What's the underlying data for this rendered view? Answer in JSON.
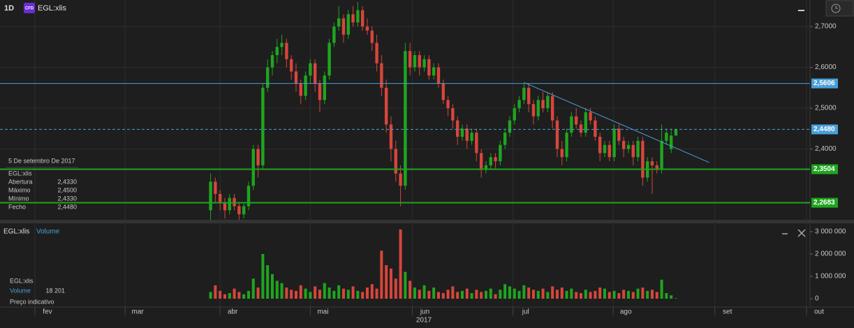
{
  "header": {
    "interval": "1D",
    "badge": "CFD",
    "symbol": "EGL:xlis"
  },
  "info": {
    "date": "5 De setembro De 2017",
    "symbol": "EGL:xlis",
    "rows": [
      [
        "Abertura",
        "2,4330"
      ],
      [
        "Máximo",
        "2,4500"
      ],
      [
        "Mínimo",
        "2,4330"
      ],
      [
        "Fecho",
        "2,4480"
      ]
    ]
  },
  "volume_header": {
    "symbol": "EGL:xlis",
    "label": "Volume"
  },
  "volume_info": {
    "symbol": "EGL:xlis",
    "label": "Volume",
    "value": "18 201",
    "note": "Preço indicativo"
  },
  "chart_data": [
    {
      "type": "candlestick",
      "name": "EGL:xlis",
      "up_color": "#1fa51f",
      "down_color": "#d7463c",
      "xlim": [
        -7.35,
        163.24
      ],
      "ylim": [
        2.2265,
        2.765
      ],
      "yticks": [
        {
          "value": 2.4,
          "label": "2,4000"
        },
        {
          "value": 2.5,
          "label": "2,5000"
        },
        {
          "value": 2.6,
          "label": "2,6000"
        },
        {
          "value": 2.7,
          "label": "2,7000"
        }
      ],
      "grid": true,
      "levels": [
        {
          "value": 2.5606,
          "label": "2,5606",
          "color": "#4a9fd8",
          "dashed": false
        },
        {
          "value": 2.448,
          "label": "2,4480",
          "color": "#4a9fd8",
          "dashed": true
        },
        {
          "value": 2.3504,
          "label": "2,3504",
          "color": "#1fa51f",
          "dashed": false
        },
        {
          "value": 2.2683,
          "label": "2,2683",
          "color": "#1fa51f",
          "dashed": false
        }
      ],
      "trendline": {
        "x": [
          103,
          142
        ],
        "values": [
          2.563,
          2.367
        ],
        "color": "#4a9fd8"
      },
      "x": [
        37,
        38,
        39,
        40,
        41,
        42,
        43,
        44,
        45,
        46,
        47,
        48,
        49,
        50,
        51,
        52,
        53,
        54,
        55,
        56,
        57,
        58,
        59,
        60,
        61,
        62,
        63,
        64,
        65,
        66,
        67,
        68,
        69,
        70,
        71,
        72,
        73,
        74,
        75,
        76,
        77,
        78,
        79,
        80,
        81,
        82,
        83,
        84,
        85,
        86,
        87,
        88,
        89,
        90,
        91,
        92,
        93,
        94,
        95,
        96,
        97,
        98,
        99,
        100,
        101,
        102,
        103,
        104,
        105,
        106,
        107,
        108,
        109,
        110,
        111,
        112,
        113,
        114,
        115,
        116,
        117,
        118,
        119,
        120,
        121,
        122,
        123,
        124,
        125,
        126,
        127,
        128,
        129,
        130,
        131,
        132,
        133,
        134,
        135
      ],
      "ohlc": [
        [
          2.25,
          2.34,
          2.22,
          2.32
        ],
        [
          2.32,
          2.33,
          2.27,
          2.29
        ],
        [
          2.29,
          2.3,
          2.25,
          2.27
        ],
        [
          2.27,
          2.28,
          2.23,
          2.25
        ],
        [
          2.25,
          2.29,
          2.24,
          2.28
        ],
        [
          2.28,
          2.29,
          2.25,
          2.26
        ],
        [
          2.26,
          2.27,
          2.22,
          2.24
        ],
        [
          2.24,
          2.27,
          2.23,
          2.26
        ],
        [
          2.26,
          2.32,
          2.25,
          2.31
        ],
        [
          2.31,
          2.41,
          2.3,
          2.4
        ],
        [
          2.4,
          2.41,
          2.33,
          2.36
        ],
        [
          2.36,
          2.56,
          2.35,
          2.55
        ],
        [
          2.55,
          2.62,
          2.54,
          2.6
        ],
        [
          2.6,
          2.64,
          2.58,
          2.63
        ],
        [
          2.63,
          2.67,
          2.61,
          2.65
        ],
        [
          2.65,
          2.68,
          2.63,
          2.66
        ],
        [
          2.66,
          2.67,
          2.6,
          2.62
        ],
        [
          2.62,
          2.63,
          2.57,
          2.59
        ],
        [
          2.59,
          2.61,
          2.54,
          2.56
        ],
        [
          2.56,
          2.57,
          2.51,
          2.53
        ],
        [
          2.53,
          2.59,
          2.52,
          2.58
        ],
        [
          2.58,
          2.62,
          2.56,
          2.61
        ],
        [
          2.61,
          2.62,
          2.54,
          2.56
        ],
        [
          2.56,
          2.57,
          2.49,
          2.52
        ],
        [
          2.52,
          2.59,
          2.51,
          2.58
        ],
        [
          2.58,
          2.67,
          2.57,
          2.66
        ],
        [
          2.66,
          2.71,
          2.65,
          2.7
        ],
        [
          2.7,
          2.75,
          2.69,
          2.72
        ],
        [
          2.72,
          2.73,
          2.66,
          2.68
        ],
        [
          2.68,
          2.74,
          2.67,
          2.73
        ],
        [
          2.73,
          2.75,
          2.7,
          2.71
        ],
        [
          2.71,
          2.76,
          2.7,
          2.74
        ],
        [
          2.74,
          2.75,
          2.69,
          2.7
        ],
        [
          2.7,
          2.72,
          2.68,
          2.69
        ],
        [
          2.69,
          2.7,
          2.64,
          2.66
        ],
        [
          2.66,
          2.68,
          2.59,
          2.61
        ],
        [
          2.61,
          2.63,
          2.53,
          2.55
        ],
        [
          2.55,
          2.57,
          2.44,
          2.46
        ],
        [
          2.46,
          2.48,
          2.37,
          2.4
        ],
        [
          2.4,
          2.42,
          2.32,
          2.34
        ],
        [
          2.34,
          2.36,
          2.26,
          2.31
        ],
        [
          2.31,
          2.66,
          2.3,
          2.64
        ],
        [
          2.64,
          2.66,
          2.58,
          2.6
        ],
        [
          2.6,
          2.64,
          2.59,
          2.63
        ],
        [
          2.63,
          2.64,
          2.58,
          2.6
        ],
        [
          2.6,
          2.63,
          2.59,
          2.62
        ],
        [
          2.62,
          2.63,
          2.57,
          2.58
        ],
        [
          2.58,
          2.61,
          2.57,
          2.6
        ],
        [
          2.6,
          2.61,
          2.55,
          2.56
        ],
        [
          2.56,
          2.57,
          2.51,
          2.52
        ],
        [
          2.52,
          2.53,
          2.48,
          2.5
        ],
        [
          2.5,
          2.51,
          2.45,
          2.47
        ],
        [
          2.47,
          2.48,
          2.41,
          2.43
        ],
        [
          2.43,
          2.46,
          2.42,
          2.45
        ],
        [
          2.45,
          2.46,
          2.4,
          2.42
        ],
        [
          2.42,
          2.45,
          2.41,
          2.44
        ],
        [
          2.44,
          2.45,
          2.37,
          2.39
        ],
        [
          2.39,
          2.4,
          2.33,
          2.35
        ],
        [
          2.35,
          2.37,
          2.34,
          2.36
        ],
        [
          2.36,
          2.39,
          2.35,
          2.38
        ],
        [
          2.38,
          2.39,
          2.35,
          2.37
        ],
        [
          2.37,
          2.42,
          2.36,
          2.41
        ],
        [
          2.41,
          2.45,
          2.4,
          2.44
        ],
        [
          2.44,
          2.48,
          2.43,
          2.47
        ],
        [
          2.47,
          2.51,
          2.46,
          2.5
        ],
        [
          2.5,
          2.53,
          2.49,
          2.52
        ],
        [
          2.52,
          2.56,
          2.51,
          2.55
        ],
        [
          2.55,
          2.56,
          2.49,
          2.51
        ],
        [
          2.51,
          2.52,
          2.46,
          2.48
        ],
        [
          2.48,
          2.53,
          2.47,
          2.52
        ],
        [
          2.52,
          2.54,
          2.49,
          2.5
        ],
        [
          2.5,
          2.54,
          2.49,
          2.53
        ],
        [
          2.53,
          2.54,
          2.45,
          2.47
        ],
        [
          2.47,
          2.48,
          2.38,
          2.4
        ],
        [
          2.4,
          2.42,
          2.36,
          2.38
        ],
        [
          2.38,
          2.45,
          2.37,
          2.44
        ],
        [
          2.44,
          2.49,
          2.43,
          2.48
        ],
        [
          2.48,
          2.5,
          2.45,
          2.46
        ],
        [
          2.46,
          2.47,
          2.43,
          2.44
        ],
        [
          2.44,
          2.5,
          2.43,
          2.49
        ],
        [
          2.49,
          2.5,
          2.46,
          2.47
        ],
        [
          2.47,
          2.48,
          2.42,
          2.43
        ],
        [
          2.43,
          2.44,
          2.37,
          2.39
        ],
        [
          2.39,
          2.42,
          2.38,
          2.41
        ],
        [
          2.41,
          2.42,
          2.37,
          2.38
        ],
        [
          2.38,
          2.46,
          2.37,
          2.45
        ],
        [
          2.45,
          2.46,
          2.41,
          2.42
        ],
        [
          2.42,
          2.43,
          2.38,
          2.4
        ],
        [
          2.4,
          2.42,
          2.39,
          2.41
        ],
        [
          2.41,
          2.42,
          2.36,
          2.38
        ],
        [
          2.38,
          2.43,
          2.37,
          2.42
        ],
        [
          2.42,
          2.43,
          2.31,
          2.33
        ],
        [
          2.33,
          2.38,
          2.32,
          2.37
        ],
        [
          2.37,
          2.38,
          2.29,
          2.36
        ],
        [
          2.36,
          2.37,
          2.34,
          2.35
        ],
        [
          2.35,
          2.46,
          2.34,
          2.42
        ],
        [
          2.42,
          2.45,
          2.41,
          2.44
        ],
        [
          2.4,
          2.45,
          2.39,
          2.433
        ],
        [
          2.433,
          2.45,
          2.433,
          2.448
        ]
      ]
    },
    {
      "type": "bar",
      "name": "Volume",
      "xlim": [
        -7.35,
        163.24
      ],
      "ylim": [
        -312500,
        3437500
      ],
      "xticks": [
        {
          "value": 0,
          "label": "fev"
        },
        {
          "value": 19,
          "label": "mar"
        },
        {
          "value": 39,
          "label": "abr"
        },
        {
          "value": 58,
          "label": "mai"
        },
        {
          "value": 79.5,
          "label": "jun"
        },
        {
          "value": 100.7,
          "label": "jul"
        },
        {
          "value": 121.8,
          "label": "ago"
        },
        {
          "value": 143.2,
          "label": "set"
        },
        {
          "value": 162.5,
          "label": "out"
        }
      ],
      "x_label": "2017",
      "yticks": [
        0,
        {
          "value": 1000000,
          "label": "1 000 000"
        },
        {
          "value": 2000000,
          "label": "2 000 000"
        },
        {
          "value": 3000000,
          "label": "3 000 000"
        }
      ],
      "x": [
        37,
        38,
        39,
        40,
        41,
        42,
        43,
        44,
        45,
        46,
        47,
        48,
        49,
        50,
        51,
        52,
        53,
        54,
        55,
        56,
        57,
        58,
        59,
        60,
        61,
        62,
        63,
        64,
        65,
        66,
        67,
        68,
        69,
        70,
        71,
        72,
        73,
        74,
        75,
        76,
        77,
        78,
        79,
        80,
        81,
        82,
        83,
        84,
        85,
        86,
        87,
        88,
        89,
        90,
        91,
        92,
        93,
        94,
        95,
        96,
        97,
        98,
        99,
        100,
        101,
        102,
        103,
        104,
        105,
        106,
        107,
        108,
        109,
        110,
        111,
        112,
        113,
        114,
        115,
        116,
        117,
        118,
        119,
        120,
        121,
        122,
        123,
        124,
        125,
        126,
        127,
        128,
        129,
        130,
        131,
        132,
        133,
        134,
        135
      ],
      "values": [
        300000,
        600000,
        350000,
        200000,
        250000,
        450000,
        300000,
        200000,
        350000,
        900000,
        500000,
        2000000,
        1500000,
        1100000,
        800000,
        700000,
        500000,
        400000,
        350000,
        600000,
        450000,
        300000,
        550000,
        400000,
        700000,
        500000,
        350000,
        600000,
        450000,
        400000,
        550000,
        350000,
        300000,
        500000,
        650000,
        450000,
        2150000,
        1500000,
        1350000,
        900000,
        3100000,
        1200000,
        800000,
        500000,
        400000,
        600000,
        350000,
        500000,
        300000,
        250000,
        400000,
        550000,
        300000,
        350000,
        450000,
        250000,
        400000,
        300000,
        350000,
        450000,
        200000,
        400000,
        650000,
        550000,
        450000,
        350000,
        600000,
        500000,
        400000,
        350000,
        450000,
        300000,
        550000,
        400000,
        500000,
        350000,
        450000,
        300000,
        250000,
        400000,
        300000,
        350000,
        500000,
        450000,
        300000,
        350000,
        250000,
        400000,
        350000,
        300000,
        450000,
        500000,
        350000,
        400000,
        300000,
        850000,
        250000,
        150000,
        18201
      ]
    }
  ]
}
